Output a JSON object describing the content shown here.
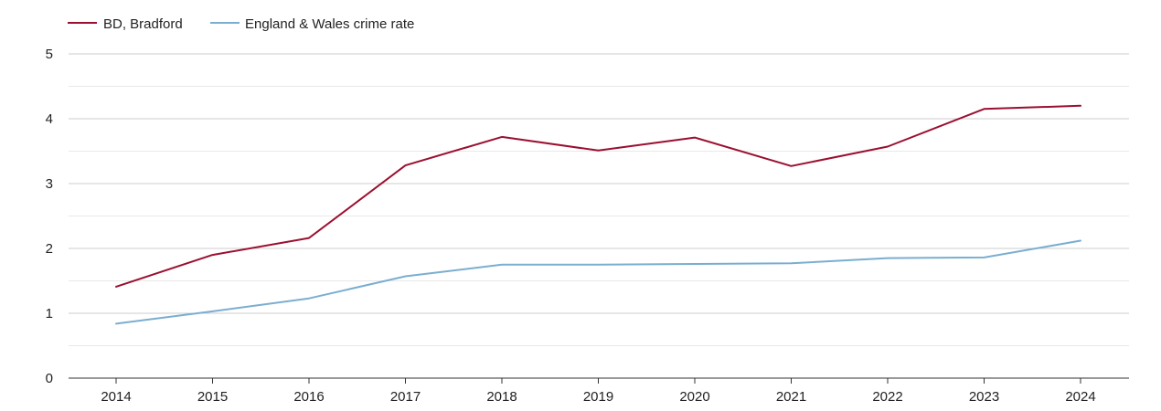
{
  "chart_data": {
    "type": "line",
    "title": "",
    "xlabel": "",
    "ylabel": "",
    "categories": [
      "2014",
      "2015",
      "2016",
      "2017",
      "2018",
      "2019",
      "2020",
      "2021",
      "2022",
      "2023",
      "2024"
    ],
    "ylim": [
      0,
      5
    ],
    "yticks": [
      "0",
      "1",
      "2",
      "3",
      "4",
      "5"
    ],
    "grid": true,
    "legend_position": "top-left",
    "series": [
      {
        "name": "BD, Bradford",
        "color": "#9b1030",
        "values": [
          1.41,
          1.9,
          2.16,
          3.28,
          3.72,
          3.51,
          3.71,
          3.27,
          3.57,
          4.15,
          4.2
        ]
      },
      {
        "name": "England & Wales crime rate",
        "color": "#7aaed0",
        "values": [
          0.84,
          1.03,
          1.23,
          1.57,
          1.75,
          1.75,
          1.76,
          1.77,
          1.85,
          1.86,
          2.12
        ]
      }
    ]
  }
}
